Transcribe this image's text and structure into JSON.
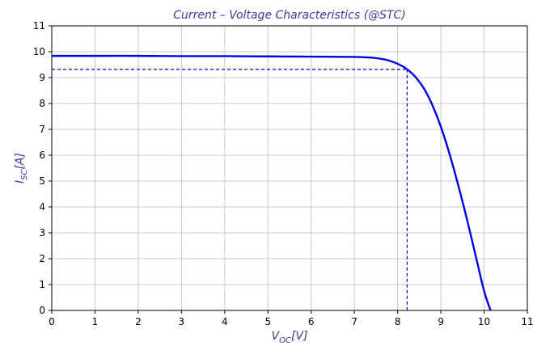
{
  "chart_data": {
    "type": "line",
    "title": "Current – Voltage Characteristics (@STC)",
    "xlabel_main": "V",
    "xlabel_sub": "OC",
    "xlabel_unit": "[V]",
    "ylabel_main": "I",
    "ylabel_sub": "SC",
    "ylabel_unit": "[A]",
    "xlim": [
      0,
      11
    ],
    "ylim": [
      0,
      11
    ],
    "xticks": [
      0,
      1,
      2,
      3,
      4,
      5,
      6,
      7,
      8,
      9,
      10,
      11
    ],
    "yticks": [
      0,
      1,
      2,
      3,
      4,
      5,
      6,
      7,
      8,
      9,
      10,
      11
    ],
    "grid": true,
    "series": [
      {
        "color": "#0000e6",
        "style": "solid",
        "x": [
          0,
          1,
          2,
          3,
          4,
          5,
          6,
          7,
          7.4,
          7.7,
          7.9,
          8.1,
          8.22,
          8.4,
          8.6,
          8.8,
          9.0,
          9.2,
          9.4,
          9.6,
          9.8,
          10.0,
          10.15
        ],
        "y": [
          9.84,
          9.84,
          9.84,
          9.83,
          9.83,
          9.82,
          9.81,
          9.8,
          9.77,
          9.7,
          9.6,
          9.45,
          9.32,
          9.05,
          8.6,
          7.95,
          7.1,
          6.05,
          4.85,
          3.55,
          2.15,
          0.75,
          0
        ]
      }
    ],
    "mpp": {
      "v": 8.22,
      "i": 9.32,
      "color": "#0000e6",
      "style": "dashed"
    }
  }
}
